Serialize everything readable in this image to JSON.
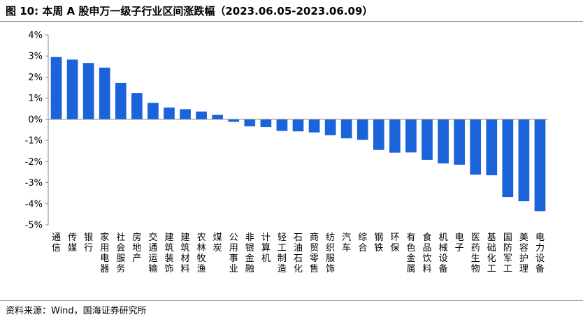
{
  "title": "图 10:  本周 A 股申万一级子行业区间涨跌幅（2023.06.05-2023.06.09）",
  "source": "资料来源：Wind，国海证券研究所",
  "colors": {
    "bar": "#1b63d8",
    "axis": "#888888"
  },
  "chart_data": {
    "type": "bar",
    "title": "本周 A 股申万一级子行业区间涨跌幅（2023.06.05-2023.06.09）",
    "xlabel": "",
    "ylabel": "",
    "ylim": [
      -5,
      4
    ],
    "yticks": [
      "4%",
      "3%",
      "2%",
      "1%",
      "0%",
      "-1%",
      "-2%",
      "-3%",
      "-4%",
      "-5%"
    ],
    "grid": false,
    "legend": "none",
    "unit": "%",
    "categories": [
      "通信",
      "传媒",
      "银行",
      "家用电器",
      "社会服务",
      "房地产",
      "交通运输",
      "建筑装饰",
      "建筑材料",
      "农林牧渔",
      "煤炭",
      "公用事业",
      "非银金融",
      "计算机",
      "轻工制造",
      "石油石化",
      "商贸零售",
      "纺织服饰",
      "汽车",
      "综合",
      "钢铁",
      "环保",
      "有色金属",
      "食品饮料",
      "机械设备",
      "电子",
      "医药生物",
      "基础化工",
      "国防军工",
      "美容护理",
      "电力设备"
    ],
    "values": [
      2.95,
      2.83,
      2.67,
      2.45,
      1.72,
      1.25,
      0.78,
      0.56,
      0.48,
      0.37,
      0.21,
      -0.12,
      -0.33,
      -0.37,
      -0.55,
      -0.57,
      -0.62,
      -0.75,
      -0.9,
      -0.97,
      -1.45,
      -1.58,
      -1.57,
      -1.92,
      -2.09,
      -2.15,
      -2.62,
      -2.65,
      -3.68,
      -3.88,
      -4.35
    ]
  }
}
